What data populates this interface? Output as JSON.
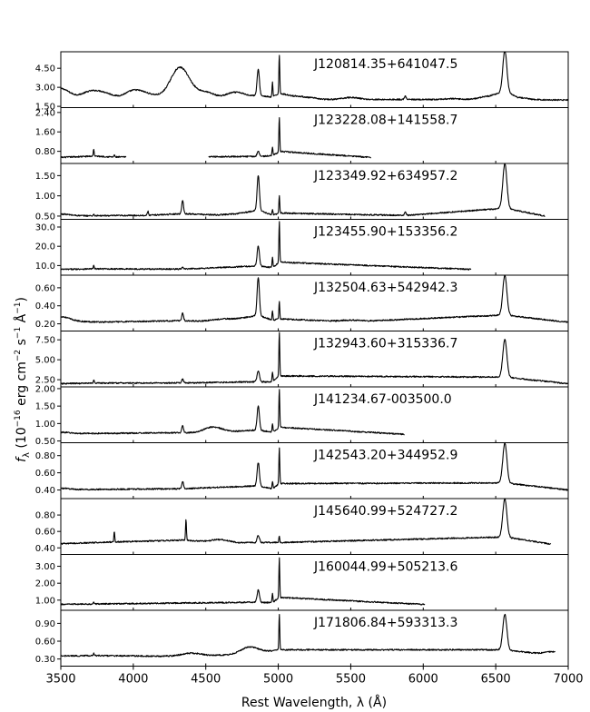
{
  "chart_data": {
    "type": "line",
    "xlabel": "Rest Wavelength, λ (Å)",
    "ylabel_main": "f",
    "ylabel_sub": "λ",
    "ylabel_rest": " (10",
    "ylabel_exp": "−16",
    "ylabel_units1": " erg cm",
    "ylabel_exp2": "−2",
    "ylabel_units2": " s",
    "ylabel_exp3": "−1",
    "ylabel_units3": " Å",
    "ylabel_exp4": "−1",
    "ylabel_close": ")",
    "xlim": [
      3500,
      7000
    ],
    "xticks": [
      "3500",
      "4000",
      "4500",
      "5000",
      "5500",
      "6000",
      "6500",
      "7000"
    ],
    "xtick_values": [
      3500,
      4000,
      4500,
      5000,
      5500,
      6000,
      6500,
      7000
    ],
    "line_color": "#000000",
    "panels": [
      {
        "name": "J120814.35+641047.5",
        "ylim": [
          1.4,
          5.8
        ],
        "yticks": [
          "1.50",
          "3.00",
          "4.50"
        ],
        "ytick_values": [
          1.5,
          3.0,
          4.5
        ],
        "segments": [
          [
            3500,
            7000
          ]
        ],
        "baseline": 2.0,
        "points": [
          [
            3500,
            2.9
          ],
          [
            3700,
            2.6
          ],
          [
            3800,
            2.5
          ],
          [
            4000,
            2.7
          ],
          [
            4100,
            2.4
          ],
          [
            4300,
            3.6
          ],
          [
            4350,
            3.4
          ],
          [
            4500,
            2.6
          ],
          [
            4700,
            2.6
          ],
          [
            4862,
            4.4
          ],
          [
            4960,
            3.4
          ],
          [
            5007,
            5.6
          ],
          [
            5200,
            2.2
          ],
          [
            5500,
            2.2
          ],
          [
            5876,
            2.3
          ],
          [
            6200,
            2.1
          ],
          [
            6450,
            2.3
          ],
          [
            6563,
            5.8
          ],
          [
            6650,
            2.2
          ],
          [
            7000,
            2.0
          ]
        ]
      },
      {
        "name": "J123228.08+141558.7",
        "ylim": [
          0.3,
          2.6
        ],
        "yticks": [
          "0.80",
          "1.60",
          "2.40"
        ],
        "ytick_values": [
          0.8,
          1.6,
          2.4
        ],
        "segments": [
          [
            3500,
            3950
          ],
          [
            4520,
            5640
          ]
        ],
        "baseline": 0.55,
        "points": [
          [
            3500,
            0.55
          ],
          [
            3727,
            0.9
          ],
          [
            3869,
            0.65
          ],
          [
            4862,
            0.8
          ],
          [
            4960,
            1.0
          ],
          [
            5007,
            2.2
          ],
          [
            5640,
            0.55
          ]
        ]
      },
      {
        "name": "J123349.92+634957.2",
        "ylim": [
          0.42,
          1.8
        ],
        "yticks": [
          "0.50",
          "1.00",
          "1.50"
        ],
        "ytick_values": [
          0.5,
          1.0,
          1.5
        ],
        "segments": [
          [
            3500,
            6840
          ]
        ],
        "baseline": 0.5,
        "points": [
          [
            3500,
            0.55
          ],
          [
            3727,
            0.55
          ],
          [
            4101,
            0.62
          ],
          [
            4340,
            0.9
          ],
          [
            4700,
            0.55
          ],
          [
            4862,
            1.5
          ],
          [
            4960,
            0.65
          ],
          [
            5007,
            1.0
          ],
          [
            5876,
            0.6
          ],
          [
            6563,
            1.8
          ],
          [
            6840,
            0.5
          ]
        ]
      },
      {
        "name": "J123455.90+153356.2",
        "ylim": [
          5,
          34
        ],
        "yticks": [
          "10.0",
          "20.0",
          "30.0"
        ],
        "ytick_values": [
          10.0,
          20.0,
          30.0
        ],
        "segments": [
          [
            3500,
            6330
          ]
        ],
        "baseline": 8.0,
        "points": [
          [
            3500,
            8.0
          ],
          [
            3727,
            10.0
          ],
          [
            4340,
            9.0
          ],
          [
            4862,
            20.0
          ],
          [
            4960,
            14.0
          ],
          [
            5007,
            33.0
          ],
          [
            6330,
            8.0
          ]
        ]
      },
      {
        "name": "J132504.63+542942.3",
        "ylim": [
          0.12,
          0.74
        ],
        "yticks": [
          "0.20",
          "0.40",
          "0.60"
        ],
        "ytick_values": [
          0.2,
          0.4,
          0.6
        ],
        "segments": [
          [
            3500,
            7000
          ]
        ],
        "baseline": 0.22,
        "points": [
          [
            3500,
            0.28
          ],
          [
            3800,
            0.22
          ],
          [
            4340,
            0.32
          ],
          [
            4600,
            0.25
          ],
          [
            4862,
            0.72
          ],
          [
            4960,
            0.35
          ],
          [
            5007,
            0.45
          ],
          [
            5500,
            0.24
          ],
          [
            6563,
            0.74
          ],
          [
            7000,
            0.2
          ]
        ]
      },
      {
        "name": "J132943.60+315336.7",
        "ylim": [
          1.6,
          8.6
        ],
        "yticks": [
          "2.50",
          "5.00",
          "7.50"
        ],
        "ytick_values": [
          2.5,
          5.0,
          7.5
        ],
        "segments": [
          [
            3500,
            7000
          ]
        ],
        "baseline": 2.0,
        "points": [
          [
            3500,
            2.0
          ],
          [
            3727,
            2.5
          ],
          [
            4340,
            2.6
          ],
          [
            4862,
            3.6
          ],
          [
            4960,
            3.5
          ],
          [
            5007,
            8.5
          ],
          [
            6563,
            7.5
          ],
          [
            7000,
            2.0
          ]
        ]
      },
      {
        "name": "J141234.67-003500.0",
        "ylim": [
          0.45,
          2.05
        ],
        "yticks": [
          "0.50",
          "1.00",
          "1.50",
          "2.00"
        ],
        "ytick_values": [
          0.5,
          1.0,
          1.5,
          2.0
        ],
        "segments": [
          [
            3500,
            5870
          ]
        ],
        "baseline": 0.7,
        "points": [
          [
            3500,
            0.75
          ],
          [
            4340,
            0.95
          ],
          [
            4550,
            0.9
          ],
          [
            4862,
            1.5
          ],
          [
            4960,
            1.0
          ],
          [
            5007,
            2.0
          ],
          [
            5870,
            0.65
          ]
        ]
      },
      {
        "name": "J142543.20+344952.9",
        "ylim": [
          0.3,
          0.95
        ],
        "yticks": [
          "0.40",
          "0.60",
          "0.80"
        ],
        "ytick_values": [
          0.4,
          0.6,
          0.8
        ],
        "segments": [
          [
            3500,
            7000
          ]
        ],
        "baseline": 0.4,
        "points": [
          [
            3500,
            0.42
          ],
          [
            4340,
            0.5
          ],
          [
            4862,
            0.72
          ],
          [
            4960,
            0.5
          ],
          [
            5007,
            0.9
          ],
          [
            6563,
            0.95
          ],
          [
            7000,
            0.4
          ]
        ]
      },
      {
        "name": "J145640.99+524727.2",
        "ylim": [
          0.32,
          1.0
        ],
        "yticks": [
          "0.40",
          "0.60",
          "0.80"
        ],
        "ytick_values": [
          0.4,
          0.6,
          0.8
        ],
        "segments": [
          [
            3500,
            6880
          ]
        ],
        "baseline": 0.45,
        "points": [
          [
            3500,
            0.45
          ],
          [
            3869,
            0.6
          ],
          [
            4363,
            0.75
          ],
          [
            4600,
            0.5
          ],
          [
            4862,
            0.55
          ],
          [
            5007,
            0.55
          ],
          [
            6563,
            1.0
          ],
          [
            6880,
            0.42
          ]
        ]
      },
      {
        "name": "J160044.99+505213.6",
        "ylim": [
          0.4,
          3.7
        ],
        "yticks": [
          "1.00",
          "2.00",
          "3.00"
        ],
        "ytick_values": [
          1.0,
          2.0,
          3.0
        ],
        "segments": [
          [
            3500,
            6010
          ]
        ],
        "baseline": 0.75,
        "points": [
          [
            3500,
            0.75
          ],
          [
            3727,
            0.9
          ],
          [
            4862,
            1.6
          ],
          [
            4960,
            1.4
          ],
          [
            5007,
            3.5
          ],
          [
            6010,
            0.7
          ]
        ]
      },
      {
        "name": "J171806.84+593313.3",
        "ylim": [
          0.18,
          1.12
        ],
        "yticks": [
          "0.30",
          "0.60",
          "0.90"
        ],
        "ytick_values": [
          0.3,
          0.6,
          0.9
        ],
        "segments": [
          [
            3500,
            6910
          ]
        ],
        "baseline": 0.35,
        "points": [
          [
            3500,
            0.35
          ],
          [
            3727,
            0.4
          ],
          [
            4200,
            0.33
          ],
          [
            4400,
            0.4
          ],
          [
            4800,
            0.5
          ],
          [
            5007,
            1.05
          ],
          [
            6563,
            1.05
          ],
          [
            6910,
            0.42
          ]
        ]
      }
    ]
  }
}
